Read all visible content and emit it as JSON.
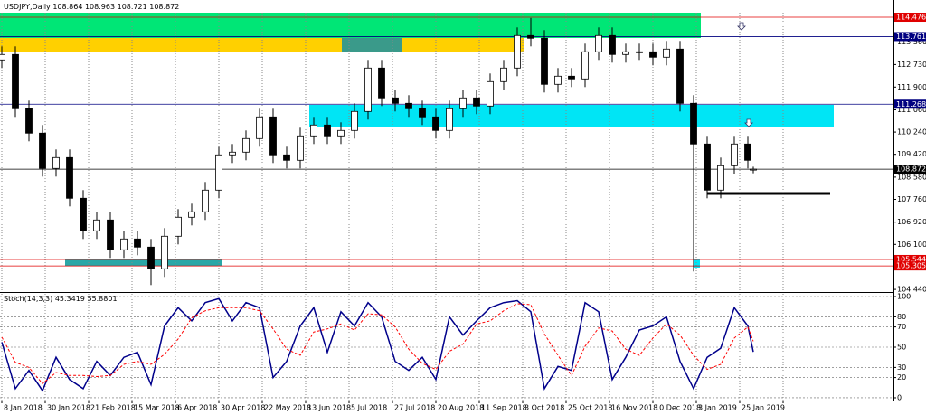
{
  "chart_data": {
    "type": "candlestick",
    "title": "USDJPY,Daily",
    "x": [
      0,
      5,
      10,
      15,
      20,
      25,
      30,
      35,
      40,
      45,
      50,
      55,
      60,
      65,
      70,
      75,
      80,
      85,
      90,
      95,
      100,
      105,
      110,
      115,
      120,
      125,
      130,
      135,
      140,
      145,
      150,
      155,
      160,
      165,
      170,
      175,
      180,
      185,
      190,
      195,
      200,
      205,
      210,
      215,
      220,
      225,
      230,
      235,
      240,
      245,
      250,
      255,
      260,
      265,
      270,
      275,
      277
    ],
    "open": [
      112.9,
      113.1,
      111.1,
      110.2,
      108.9,
      109.3,
      107.8,
      106.6,
      107.0,
      105.9,
      106.3,
      106.0,
      105.2,
      106.4,
      107.1,
      107.3,
      108.1,
      109.4,
      109.5,
      110.0,
      110.8,
      109.4,
      109.2,
      110.1,
      110.5,
      110.1,
      110.3,
      111.0,
      112.6,
      111.5,
      111.3,
      111.1,
      110.8,
      110.3,
      111.1,
      111.5,
      111.2,
      112.1,
      112.6,
      113.8,
      113.7,
      112.0,
      112.3,
      112.2,
      113.2,
      113.8,
      113.1,
      113.2,
      113.2,
      113.0,
      113.3,
      111.3,
      109.8,
      108.1,
      109.0,
      109.8,
      108.864
    ],
    "high": [
      113.4,
      113.4,
      111.4,
      110.5,
      109.6,
      109.6,
      108.1,
      107.3,
      107.3,
      106.6,
      106.6,
      106.3,
      106.7,
      107.4,
      107.6,
      108.4,
      109.7,
      109.8,
      110.3,
      111.1,
      111.1,
      109.7,
      110.4,
      110.8,
      110.8,
      110.6,
      111.3,
      112.9,
      112.9,
      111.8,
      111.6,
      111.4,
      111.1,
      111.4,
      111.8,
      111.8,
      112.4,
      112.9,
      114.1,
      114.45,
      114.0,
      112.6,
      112.6,
      113.5,
      114.1,
      114.1,
      113.5,
      113.5,
      113.5,
      113.6,
      113.6,
      111.6,
      110.1,
      109.3,
      110.1,
      110.1,
      108.963
    ],
    "low": [
      112.6,
      110.8,
      109.9,
      108.6,
      108.6,
      107.5,
      106.3,
      106.3,
      105.6,
      105.6,
      105.7,
      104.6,
      104.9,
      106.1,
      106.8,
      107.0,
      107.8,
      109.1,
      109.2,
      109.7,
      109.1,
      108.9,
      108.9,
      109.8,
      109.8,
      109.8,
      110.0,
      110.7,
      111.2,
      111.0,
      110.8,
      110.5,
      110.0,
      110.0,
      110.8,
      110.9,
      110.9,
      111.8,
      112.3,
      113.4,
      111.7,
      111.7,
      111.9,
      111.9,
      112.9,
      112.8,
      112.8,
      112.9,
      112.7,
      112.7,
      111.0,
      105.1,
      107.8,
      107.8,
      108.7,
      108.9,
      108.721
    ],
    "close": [
      113.1,
      111.1,
      110.2,
      108.9,
      109.3,
      107.8,
      106.6,
      107.0,
      105.9,
      106.3,
      106.0,
      105.2,
      106.4,
      107.1,
      107.3,
      108.1,
      109.4,
      109.5,
      110.0,
      110.8,
      109.4,
      109.2,
      110.1,
      110.5,
      110.1,
      110.3,
      111.0,
      112.6,
      111.5,
      111.3,
      111.1,
      110.8,
      110.3,
      111.1,
      111.5,
      111.2,
      112.1,
      112.6,
      113.8,
      113.7,
      112.0,
      112.3,
      112.2,
      113.2,
      113.8,
      113.1,
      113.2,
      113.2,
      113.0,
      113.3,
      111.3,
      109.8,
      108.1,
      109.0,
      109.8,
      109.2,
      108.872
    ],
    "up_color": "#ffffff",
    "down_color": "#000000",
    "xlim": [
      -0.667,
      328.667
    ],
    "xticks": [
      {
        "value": 0,
        "label": "8 Jan 2018"
      },
      {
        "value": 16,
        "label": "30 Jan 2018"
      },
      {
        "value": 32,
        "label": "21 Feb 2018"
      },
      {
        "value": 48,
        "label": "15 Mar 2018"
      },
      {
        "value": 64,
        "label": "6 Apr 2018"
      },
      {
        "value": 80,
        "label": "30 Apr 2018"
      },
      {
        "value": 96,
        "label": "22 May 2018"
      },
      {
        "value": 112,
        "label": "13 Jun 2018"
      },
      {
        "value": 128,
        "label": "5 Jul 2018"
      },
      {
        "value": 144,
        "label": "27 Jul 2018"
      },
      {
        "value": 160,
        "label": "20 Aug 2018"
      },
      {
        "value": 176,
        "label": "11 Sep 2018"
      },
      {
        "value": 192,
        "label": "3 Oct 2018"
      },
      {
        "value": 208,
        "label": "25 Oct 2018"
      },
      {
        "value": 224,
        "label": "16 Nov 2018"
      },
      {
        "value": 240,
        "label": "10 Dec 2018"
      },
      {
        "value": 256,
        "label": "3 Jan 2019"
      },
      {
        "value": 272,
        "label": "25 Jan 2019"
      },
      {
        "value": 288,
        "label": ""
      }
    ],
    "ylim": [
      104.343,
      114.643
    ],
    "yticks": [
      {
        "value": 113.56,
        "label": "113.560"
      },
      {
        "value": 112.73,
        "label": "112.730"
      },
      {
        "value": 111.9,
        "label": "111.900"
      },
      {
        "value": 111.06,
        "label": "111.060"
      },
      {
        "value": 110.24,
        "label": "110.240"
      },
      {
        "value": 109.42,
        "label": "109.420"
      },
      {
        "value": 108.58,
        "label": "108.580"
      },
      {
        "value": 107.76,
        "label": "107.760"
      },
      {
        "value": 106.92,
        "label": "106.920"
      },
      {
        "value": 106.1,
        "label": "106.100"
      },
      {
        "value": 104.44,
        "label": "104.440"
      }
    ],
    "grid": true,
    "levels": [
      {
        "value": 114.476,
        "color": "#e00000"
      },
      {
        "value": 113.761,
        "color": "#000080"
      },
      {
        "value": 111.268,
        "color": "#000080"
      },
      {
        "value": 108.872,
        "color": "#000000"
      },
      {
        "value": 105.544,
        "color": "#e00000"
      },
      {
        "value": 105.305,
        "color": "#e00000"
      }
    ],
    "indicator": {
      "name": "Stoch(14,3,3)",
      "ylim": [
        -2.7,
        102.7
      ],
      "yticks": [
        100,
        80,
        70,
        50,
        30,
        20,
        0
      ],
      "series": [
        {
          "color": "#00008b",
          "values": [
            55,
            9,
            27,
            7,
            40,
            18,
            9,
            36,
            22,
            40,
            45,
            13,
            71,
            89,
            76,
            94,
            98,
            76,
            94,
            89,
            20,
            36,
            71,
            89,
            45,
            85,
            71,
            94,
            80,
            36,
            27,
            40,
            18,
            80,
            62,
            76,
            89,
            94,
            96,
            85,
            9,
            31,
            27,
            94,
            85,
            18,
            40,
            67,
            71,
            80,
            36,
            9,
            40,
            49,
            89,
            71,
            45.3419
          ]
        },
        {
          "color": "#ff0000",
          "values": [
            60,
            35,
            30,
            14,
            25,
            22,
            22,
            21,
            22,
            33,
            36,
            33,
            43,
            58,
            79,
            86,
            89,
            89,
            89,
            86,
            68,
            48,
            42,
            65,
            68,
            73,
            67,
            83,
            82,
            70,
            48,
            34,
            28,
            46,
            53,
            73,
            76,
            86,
            93,
            92,
            63,
            42,
            22,
            51,
            69,
            66,
            48,
            42,
            59,
            73,
            62,
            42,
            28,
            33,
            59,
            70,
            55.8801
          ]
        }
      ]
    }
  }
}
